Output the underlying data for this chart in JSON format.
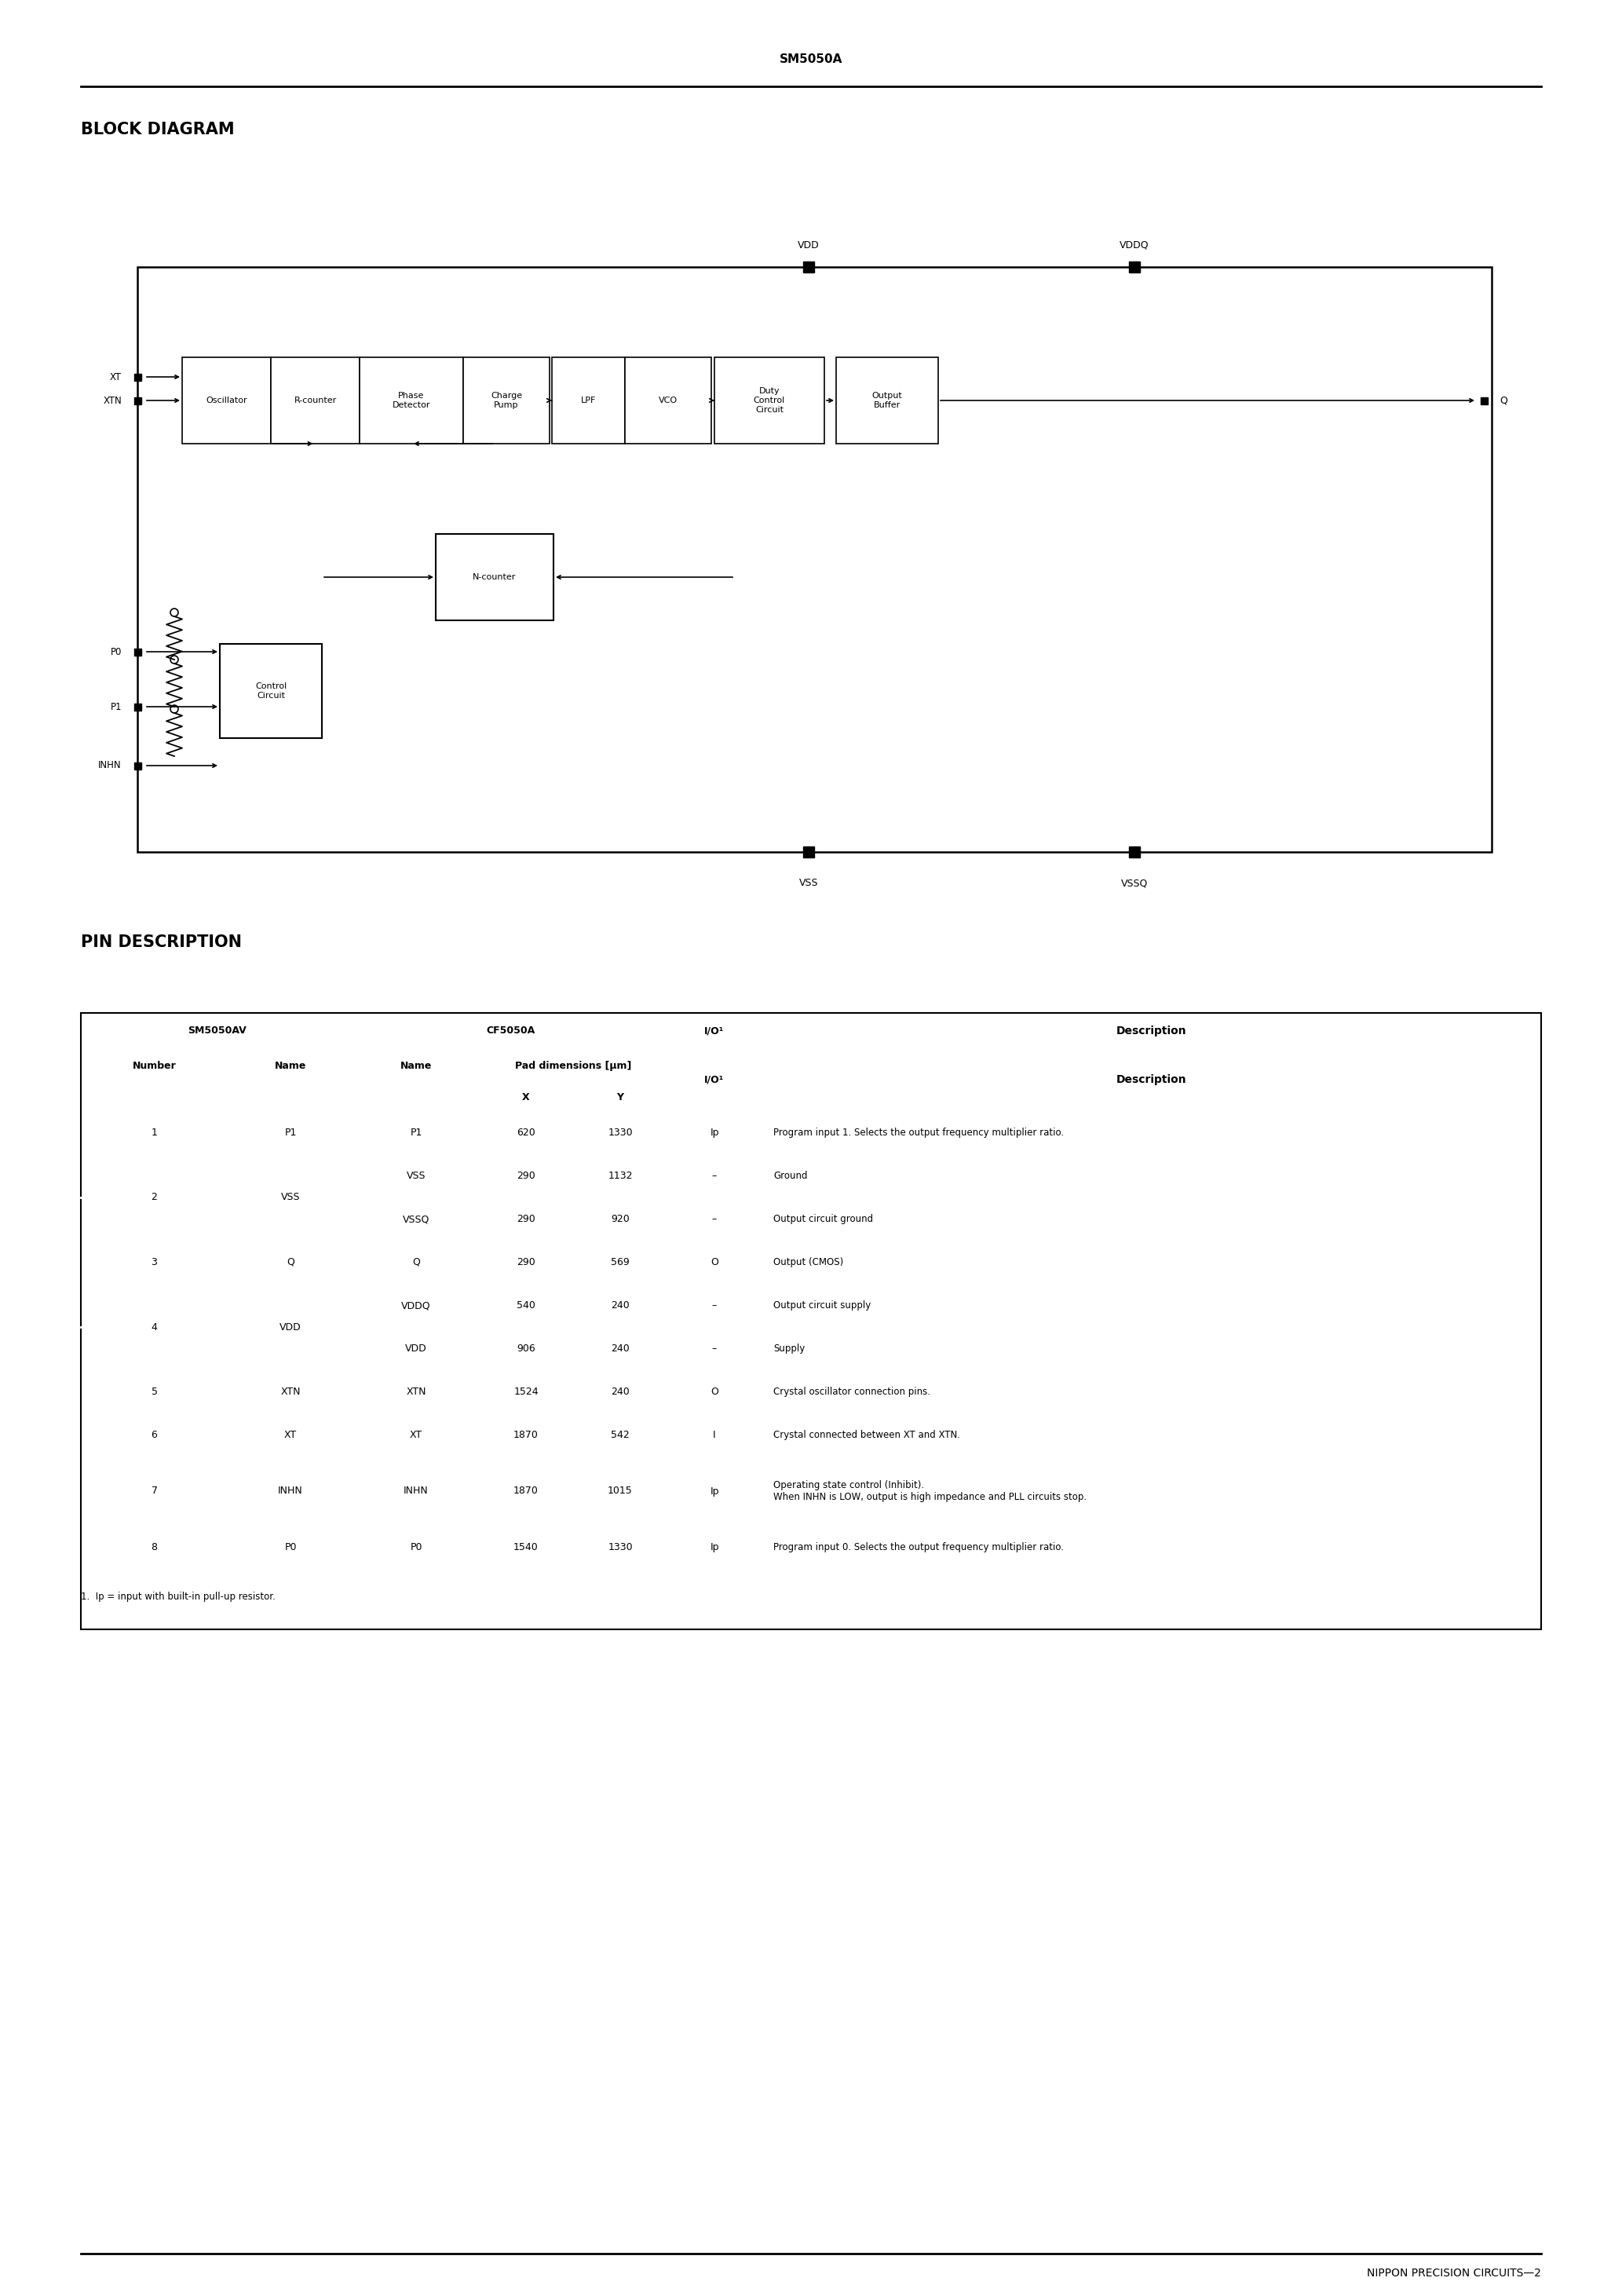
{
  "page_title": "SM5050A",
  "section1_title": "BLOCK DIAGRAM",
  "section2_title": "PIN DESCRIPTION",
  "footer_text": "NIPPON PRECISION CIRCUITS—2",
  "footnote": "1.  Ip = input with built-in pull-up resistor.",
  "block_labels": [
    "Oscillator",
    "R-counter",
    "Phase\nDetector",
    "Charge\nPump",
    "LPF",
    "VCO",
    "Duty\nControl\nCircuit",
    "Output\nBuffer"
  ],
  "table_rows": [
    {
      "num": "1",
      "sm_name": "P1",
      "cf_name": "P1",
      "xv": "620",
      "yv": "1330",
      "io": "Ip",
      "desc": "Program input 1. Selects the output frequency multiplier ratio.",
      "is_second": false,
      "is_paired": false
    },
    {
      "num": "2",
      "sm_name": "VSS",
      "cf_name": "VSS",
      "xv": "290",
      "yv": "1132",
      "io": "–",
      "desc": "Ground",
      "is_second": false,
      "is_paired": true
    },
    {
      "num": "",
      "sm_name": "",
      "cf_name": "VSSQ",
      "xv": "290",
      "yv": "920",
      "io": "–",
      "desc": "Output circuit ground",
      "is_second": true,
      "is_paired": true
    },
    {
      "num": "3",
      "sm_name": "Q",
      "cf_name": "Q",
      "xv": "290",
      "yv": "569",
      "io": "O",
      "desc": "Output (CMOS)",
      "is_second": false,
      "is_paired": false
    },
    {
      "num": "4",
      "sm_name": "VDD",
      "cf_name": "VDDQ",
      "xv": "540",
      "yv": "240",
      "io": "–",
      "desc": "Output circuit supply",
      "is_second": false,
      "is_paired": true
    },
    {
      "num": "",
      "sm_name": "",
      "cf_name": "VDD",
      "xv": "906",
      "yv": "240",
      "io": "–",
      "desc": "Supply",
      "is_second": true,
      "is_paired": true
    },
    {
      "num": "5",
      "sm_name": "XTN",
      "cf_name": "XTN",
      "xv": "1524",
      "yv": "240",
      "io": "O",
      "desc": "Crystal oscillator connection pins.",
      "is_second": false,
      "is_paired": false
    },
    {
      "num": "6",
      "sm_name": "XT",
      "cf_name": "XT",
      "xv": "1870",
      "yv": "542",
      "io": "I",
      "desc": "Crystal connected between XT and XTN.",
      "is_second": false,
      "is_paired": false
    },
    {
      "num": "7",
      "sm_name": "INHN",
      "cf_name": "INHN",
      "xv": "1870",
      "yv": "1015",
      "io": "Ip",
      "desc": "Operating state control (Inhibit).\nWhen INHN is LOW, output is high impedance and PLL circuits stop.",
      "is_second": false,
      "is_paired": false
    },
    {
      "num": "8",
      "sm_name": "P0",
      "cf_name": "P0",
      "xv": "1540",
      "yv": "1330",
      "io": "Ip",
      "desc": "Program input 0. Selects the output frequency multiplier ratio.",
      "is_second": false,
      "is_paired": false
    }
  ]
}
